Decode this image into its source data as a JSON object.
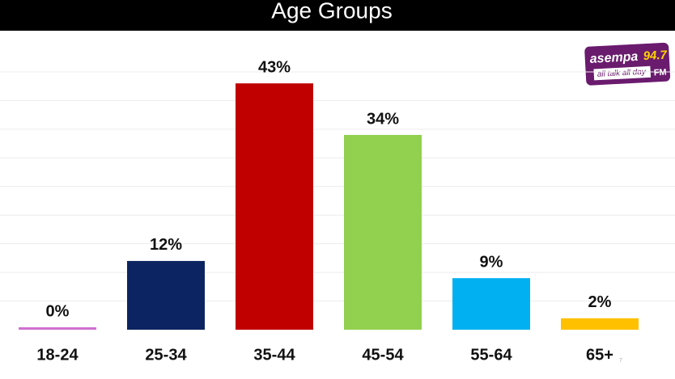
{
  "chart_data": {
    "type": "bar",
    "title": "Age Groups",
    "categories": [
      "18-24",
      "25-34",
      "35-44",
      "45-54",
      "55-64",
      "65+"
    ],
    "values": [
      0,
      12,
      43,
      34,
      9,
      2
    ],
    "value_labels": [
      "0%",
      "12%",
      "43%",
      "34%",
      "9%",
      "2%"
    ],
    "colors": [
      "#d070d0",
      "#0c2461",
      "#c00000",
      "#92d050",
      "#00b0f0",
      "#ffc000"
    ],
    "ylim": [
      0,
      45
    ],
    "grid": true
  },
  "logo": {
    "name": "asempa",
    "frequency": "94.7",
    "slogan": "all talk all day",
    "band": "FM"
  },
  "page_number": "7"
}
